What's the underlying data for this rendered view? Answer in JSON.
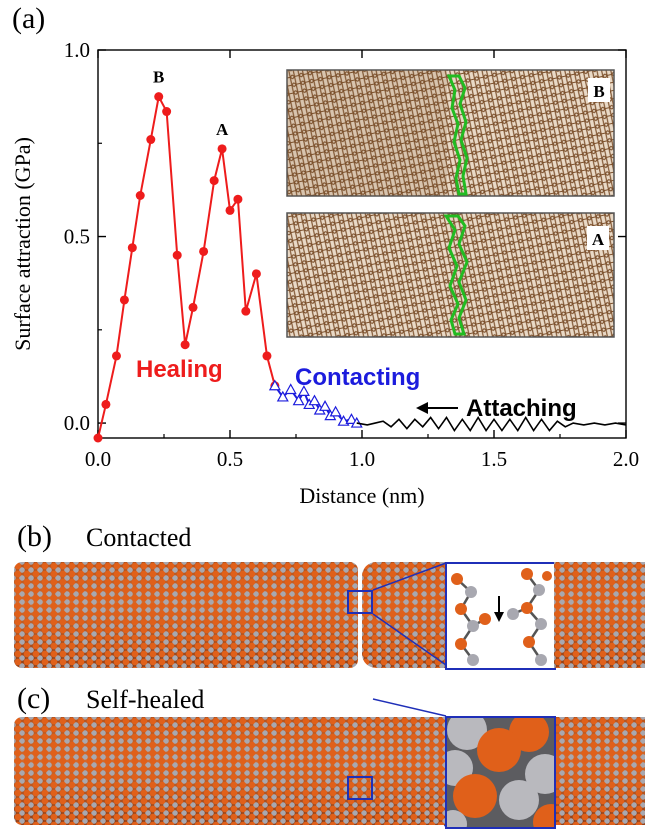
{
  "panels": {
    "a": "(a)",
    "b": "(b)",
    "c": "(c)",
    "b_title": "Contacted",
    "c_title": "Self-healed"
  },
  "inset_labels": {
    "top": "B",
    "bottom": "A"
  },
  "regions": {
    "healing": "Healing",
    "contacting": "Contacting",
    "attaching": "Attaching"
  },
  "colors": {
    "healing": "#ee1c1c",
    "contacting": "#1c1cdd",
    "attaching": "#000000",
    "carbon_brown": "#8a5a32",
    "defect_green": "#22bb22",
    "atom_orange": "#e0601a",
    "atom_gray": "#a8a8b0",
    "zoom_frame": "#1f2fb8"
  },
  "chart_data": {
    "type": "line",
    "xlabel": "Distance (nm)",
    "ylabel": "Surface attraction (GPa)",
    "xlim": [
      0.0,
      2.0
    ],
    "ylim": [
      -0.04,
      1.0
    ],
    "xticks": [
      "0.0",
      "0.5",
      "1.0",
      "1.5",
      "2.0"
    ],
    "yticks": [
      "0.0",
      "0.5",
      "1.0"
    ],
    "grid": false,
    "peak_labels": [
      {
        "text": "B",
        "x": 0.23,
        "y": 0.875
      },
      {
        "text": "A",
        "x": 0.47,
        "y": 0.735
      }
    ],
    "series": [
      {
        "region": "healing",
        "marker": "circle",
        "x": [
          0.0,
          0.03,
          0.07,
          0.1,
          0.13,
          0.16,
          0.2,
          0.23,
          0.26,
          0.3,
          0.33,
          0.36,
          0.4,
          0.44,
          0.47,
          0.5,
          0.53,
          0.56,
          0.6,
          0.64,
          0.67
        ],
        "y": [
          -0.04,
          0.05,
          0.18,
          0.33,
          0.47,
          0.61,
          0.76,
          0.875,
          0.835,
          0.45,
          0.21,
          0.31,
          0.46,
          0.65,
          0.735,
          0.57,
          0.6,
          0.3,
          0.4,
          0.18,
          0.1
        ]
      },
      {
        "region": "contacting",
        "marker": "triangle",
        "x": [
          0.67,
          0.7,
          0.73,
          0.76,
          0.78,
          0.8,
          0.82,
          0.84,
          0.86,
          0.88,
          0.9,
          0.93,
          0.96,
          0.98
        ],
        "y": [
          0.1,
          0.07,
          0.09,
          0.06,
          0.085,
          0.05,
          0.06,
          0.035,
          0.045,
          0.02,
          0.03,
          0.005,
          0.01,
          0.0
        ]
      },
      {
        "region": "attaching",
        "marker": "none",
        "x": [
          0.98,
          1.02,
          1.05,
          1.08,
          1.11,
          1.14,
          1.17,
          1.2,
          1.23,
          1.26,
          1.29,
          1.32,
          1.35,
          1.38,
          1.41,
          1.44,
          1.47,
          1.5,
          1.53,
          1.56,
          1.59,
          1.62,
          1.65,
          1.68,
          1.71,
          1.74,
          1.77,
          1.8,
          1.84,
          1.88,
          1.92,
          1.96,
          2.0
        ],
        "y": [
          0.0,
          -0.005,
          0.0,
          0.005,
          -0.01,
          0.01,
          -0.015,
          0.01,
          -0.01,
          0.015,
          -0.015,
          0.015,
          -0.02,
          0.01,
          -0.02,
          0.015,
          -0.02,
          0.01,
          -0.02,
          0.01,
          -0.02,
          0.015,
          -0.02,
          0.01,
          -0.02,
          0.005,
          -0.01,
          0.0,
          -0.005,
          0.0,
          -0.005,
          0.0,
          -0.005
        ]
      }
    ]
  }
}
